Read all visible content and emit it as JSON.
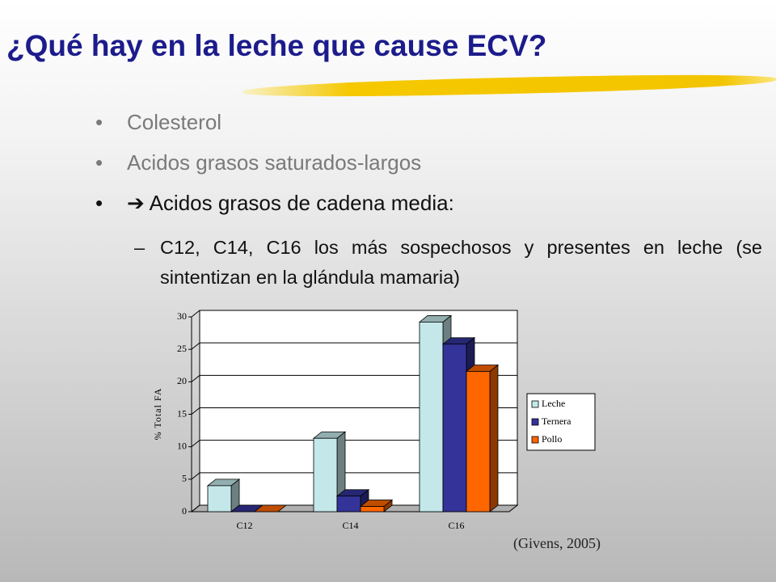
{
  "title": "¿Qué hay en la leche que cause ECV?",
  "bullets": [
    "Colesterol",
    "Acidos grasos saturados-largos",
    "➔ Acidos grasos de cadena media:"
  ],
  "sub_bullet": "C12, C14, C16 los más sospechosos y presentes en leche (se sintentizan en la glándula mamaria)",
  "citation": "(Givens, 2005)",
  "chart_data": {
    "type": "bar3d",
    "y_label": "% Total FA",
    "categories": [
      "C12",
      "C14",
      "C16"
    ],
    "series": [
      {
        "name": "Leche",
        "color": "#c4e8ea",
        "values": [
          4,
          11.3,
          29.2
        ]
      },
      {
        "name": "Ternera",
        "color": "#333399",
        "values": [
          0,
          2.4,
          25.8
        ]
      },
      {
        "name": "Pollo",
        "color": "#ff6600",
        "values": [
          0,
          0.8,
          21.6
        ]
      }
    ],
    "ylim": [
      0,
      30
    ],
    "yticks": [
      0,
      5,
      10,
      15,
      20,
      25,
      30
    ],
    "grid": true,
    "legend": "right"
  }
}
